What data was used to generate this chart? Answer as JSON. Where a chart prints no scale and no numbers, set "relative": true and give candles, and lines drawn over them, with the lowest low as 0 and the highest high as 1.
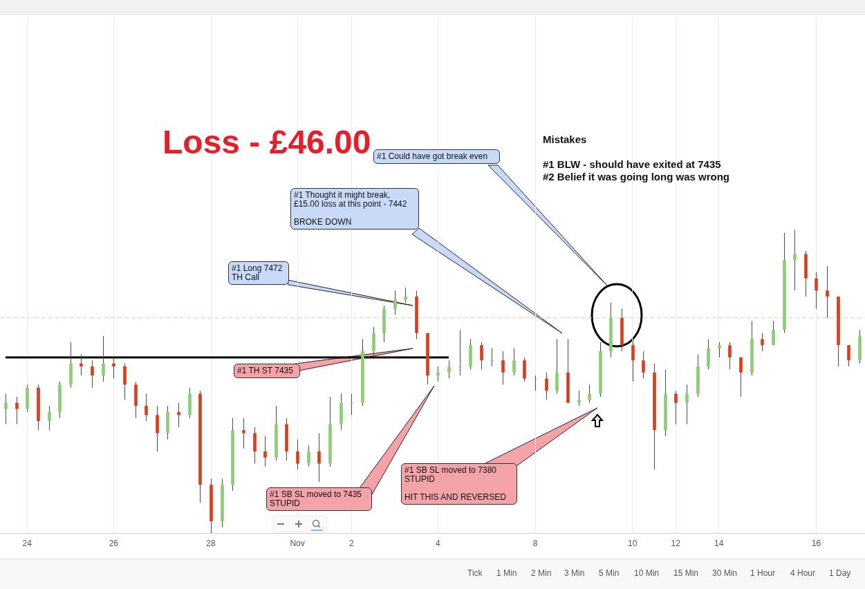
{
  "chart_data": {
    "type": "candlestick",
    "relative": true,
    "title": "Loss - £46.00",
    "grid": "x",
    "legend": false,
    "categories": [
      null,
      null,
      "24",
      null,
      null,
      null,
      null,
      null,
      null,
      null,
      "26",
      null,
      null,
      null,
      null,
      null,
      null,
      null,
      null,
      "28",
      null,
      null,
      null,
      null,
      null,
      null,
      null,
      "Nov",
      null,
      null,
      null,
      null,
      "2",
      null,
      null,
      null,
      null,
      null,
      null,
      null,
      "4",
      null,
      null,
      null,
      null,
      null,
      null,
      null,
      null,
      "8",
      null,
      null,
      null,
      null,
      null,
      null,
      null,
      null,
      "10",
      null,
      null,
      null,
      "12",
      null,
      null,
      null,
      "14",
      null,
      null,
      null,
      null,
      null,
      null,
      null,
      null,
      "16",
      null,
      null,
      null,
      null
    ],
    "ohlc": [
      [
        0.41,
        0.46,
        0.36,
        0.43
      ],
      [
        0.43,
        0.45,
        0.36,
        0.41
      ],
      [
        0.41,
        0.49,
        0.4,
        0.48
      ],
      [
        0.48,
        0.49,
        0.34,
        0.37
      ],
      [
        0.37,
        0.42,
        0.34,
        0.4
      ],
      [
        0.4,
        0.5,
        0.38,
        0.49
      ],
      [
        0.49,
        0.63,
        0.48,
        0.56
      ],
      [
        0.56,
        0.59,
        0.52,
        0.55
      ],
      [
        0.55,
        0.57,
        0.48,
        0.52
      ],
      [
        0.52,
        0.65,
        0.5,
        0.56
      ],
      [
        0.56,
        0.58,
        0.51,
        0.55
      ],
      [
        0.55,
        0.56,
        0.44,
        0.49
      ],
      [
        0.49,
        0.5,
        0.38,
        0.42
      ],
      [
        0.42,
        0.46,
        0.37,
        0.39
      ],
      [
        0.39,
        0.42,
        0.27,
        0.33
      ],
      [
        0.33,
        0.42,
        0.31,
        0.4
      ],
      [
        0.4,
        0.43,
        0.35,
        0.39
      ],
      [
        0.39,
        0.48,
        0.38,
        0.46
      ],
      [
        0.46,
        0.47,
        0.1,
        0.16
      ],
      [
        0.16,
        0.18,
        0.0,
        0.04
      ],
      [
        0.04,
        0.18,
        0.02,
        0.16
      ],
      [
        0.16,
        0.38,
        0.14,
        0.34
      ],
      [
        0.34,
        0.38,
        0.28,
        0.33
      ],
      [
        0.33,
        0.35,
        0.23,
        0.27
      ],
      [
        0.27,
        0.32,
        0.22,
        0.25
      ],
      [
        0.25,
        0.42,
        0.24,
        0.36
      ],
      [
        0.36,
        0.38,
        0.24,
        0.27
      ],
      [
        0.27,
        0.31,
        0.21,
        0.23
      ],
      [
        0.23,
        0.29,
        0.22,
        0.27
      ],
      [
        0.27,
        0.33,
        0.17,
        0.23
      ],
      [
        0.23,
        0.45,
        0.22,
        0.36
      ],
      [
        0.36,
        0.46,
        0.34,
        0.43
      ],
      [
        0.43,
        0.46,
        0.39,
        0.43
      ],
      [
        0.43,
        0.64,
        0.42,
        0.6
      ],
      [
        0.6,
        0.68,
        0.58,
        0.66
      ],
      [
        0.66,
        0.75,
        0.63,
        0.74
      ],
      [
        0.74,
        0.8,
        0.72,
        0.77
      ],
      [
        0.77,
        0.81,
        0.76,
        0.78
      ],
      [
        0.78,
        0.8,
        0.64,
        0.66
      ],
      [
        0.66,
        0.66,
        0.49,
        0.52
      ],
      [
        0.52,
        0.55,
        0.5,
        0.53
      ],
      [
        0.53,
        0.57,
        0.51,
        0.55
      ],
      [
        0.55,
        0.67,
        0.52,
        0.55
      ],
      [
        0.55,
        0.64,
        0.54,
        0.62
      ],
      [
        0.62,
        0.63,
        0.54,
        0.57
      ],
      [
        0.57,
        0.61,
        0.55,
        0.57
      ],
      [
        0.57,
        0.6,
        0.49,
        0.53
      ],
      [
        0.53,
        0.61,
        0.52,
        0.57
      ],
      [
        0.57,
        0.58,
        0.5,
        0.51
      ],
      [
        0.51,
        0.52,
        0.47,
        0.51
      ],
      [
        0.51,
        0.53,
        0.44,
        0.47
      ],
      [
        0.47,
        0.64,
        0.46,
        0.53
      ],
      [
        0.53,
        0.64,
        0.43,
        0.43
      ],
      [
        0.43,
        0.47,
        0.42,
        0.44
      ],
      [
        0.44,
        0.49,
        0.43,
        0.46
      ],
      [
        0.46,
        0.63,
        0.45,
        0.6
      ],
      [
        0.6,
        0.76,
        0.58,
        0.71
      ],
      [
        0.71,
        0.74,
        0.6,
        0.62
      ],
      [
        0.62,
        0.64,
        0.5,
        0.57
      ],
      [
        0.57,
        0.6,
        0.51,
        0.53
      ],
      [
        0.53,
        0.56,
        0.21,
        0.34
      ],
      [
        0.34,
        0.54,
        0.32,
        0.46
      ],
      [
        0.46,
        0.47,
        0.36,
        0.43
      ],
      [
        0.43,
        0.49,
        0.36,
        0.46
      ],
      [
        0.46,
        0.59,
        0.45,
        0.55
      ],
      [
        0.55,
        0.64,
        0.54,
        0.61
      ],
      [
        0.61,
        0.63,
        0.58,
        0.62
      ],
      [
        0.62,
        0.63,
        0.54,
        0.58
      ],
      [
        0.58,
        0.58,
        0.45,
        0.53
      ],
      [
        0.53,
        0.7,
        0.52,
        0.64
      ],
      [
        0.64,
        0.66,
        0.6,
        0.62
      ],
      [
        0.62,
        0.7,
        0.62,
        0.67
      ],
      [
        0.67,
        0.99,
        0.66,
        0.9
      ],
      [
        0.9,
        1.0,
        0.8,
        0.92
      ],
      [
        0.92,
        0.93,
        0.78,
        0.84
      ],
      [
        0.84,
        0.86,
        0.74,
        0.8
      ],
      [
        0.8,
        0.88,
        0.71,
        0.78
      ],
      [
        0.78,
        0.78,
        0.55,
        0.62
      ],
      [
        0.62,
        0.62,
        0.55,
        0.57
      ],
      [
        0.57,
        0.67,
        0.56,
        0.65
      ]
    ],
    "series": [
      {
        "type": "line",
        "color": "#000000",
        "values": [
          0.58,
          0.58,
          0.58,
          0.58,
          0.58,
          0.58,
          0.58,
          0.58,
          0.58,
          0.58,
          0.58,
          0.58,
          0.58,
          0.58,
          0.58,
          0.58,
          0.58,
          0.58,
          0.58,
          0.58,
          0.58,
          0.58,
          0.58,
          0.58,
          0.58,
          0.58,
          0.58,
          0.58,
          0.58,
          0.58,
          0.58,
          0.58,
          0.58,
          0.58,
          0.58,
          0.58,
          0.58,
          0.58,
          0.58,
          0.58,
          0.58,
          0.58,
          null,
          null,
          null,
          null,
          null,
          null,
          null,
          null,
          null,
          null,
          null,
          null,
          null,
          null,
          null,
          null,
          null,
          null,
          null,
          null,
          null,
          null,
          null,
          null,
          null,
          null,
          null,
          null,
          null,
          null,
          null,
          null,
          null,
          null,
          null,
          null,
          null,
          null
        ]
      }
    ],
    "ref_lines": [
      {
        "axis": "y",
        "value": 0.71,
        "color": "#bcd9b8",
        "line_style": "dashed"
      }
    ],
    "annotations": [
      "Mistakes\n\n#1 BLW - should have exited at 7435\n#2 Belief it was going long was wrong",
      "#1 Could have got break even",
      "#1 Thought it might break,\n£15.00 loss at this point - 7442\n\nBROKE DOWN",
      "#1 Long 7472\nTH Call",
      "#1 TH ST 7435",
      "#1 SB SL moved to 7435\nSTUPID",
      "#1 SB SL moved to 7380\nSTUPID\n\nHIT THIS AND REVERSED",
      "Tick",
      "1 Min",
      "2 Min",
      "3 Min",
      "5 Min",
      "10 Min",
      "15 Min",
      "30 Min",
      "1 Hour",
      "4 Hour",
      "1 Day"
    ]
  }
}
